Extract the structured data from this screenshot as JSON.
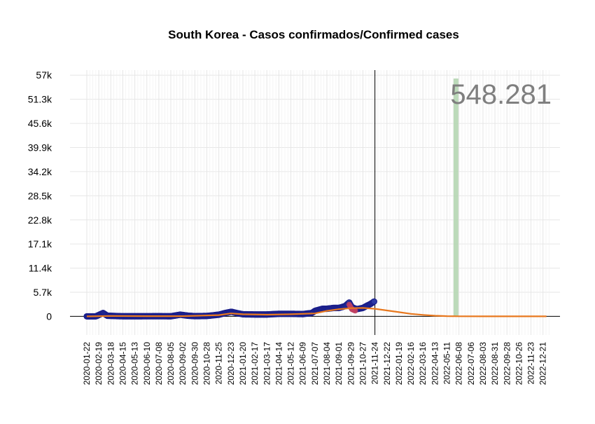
{
  "chart_data": {
    "type": "scatter",
    "title": "South Korea - Casos confirmados/Confirmed cases",
    "xlabel": "",
    "ylabel": "",
    "ylim": [
      -4400,
      58200
    ],
    "y_ticks": [
      0,
      5700,
      11400,
      17100,
      22800,
      28500,
      34200,
      39900,
      45600,
      51300,
      57000
    ],
    "y_tick_labels": [
      "0",
      "5.7k",
      "11.4k",
      "17.1k",
      "22.8k",
      "28.5k",
      "34.2k",
      "39.9k",
      "45.6k",
      "51.3k",
      "57k"
    ],
    "x_tick_labels": [
      "2020-01-22",
      "2020-02-19",
      "2020-03-18",
      "2020-04-15",
      "2020-05-13",
      "2020-06-10",
      "2020-07-08",
      "2020-08-05",
      "2020-09-02",
      "2020-09-30",
      "2020-10-28",
      "2020-11-25",
      "2020-12-23",
      "2021-01-20",
      "2021-02-17",
      "2021-03-17",
      "2021-04-14",
      "2021-05-12",
      "2021-06-09",
      "2021-07-07",
      "2021-08-04",
      "2021-09-01",
      "2021-09-29",
      "2021-10-27",
      "2021-11-24",
      "2021-12-22",
      "2022-01-19",
      "2022-02-16",
      "2022-03-16",
      "2022-04-13",
      "2022-05-11",
      "2022-06-08",
      "2022-07-06",
      "2022-08-03",
      "2022-08-31",
      "2022-09-28",
      "2022-10-26",
      "2022-11-23",
      "2022-12-21"
    ],
    "grid": true,
    "observed_cases": {
      "x": [
        "2020-01-22",
        "2020-02-12",
        "2020-02-29",
        "2020-03-10",
        "2020-03-25",
        "2020-04-15",
        "2020-05-13",
        "2020-06-10",
        "2020-07-08",
        "2020-08-05",
        "2020-08-27",
        "2020-09-15",
        "2020-09-30",
        "2020-10-28",
        "2020-11-25",
        "2020-12-10",
        "2020-12-24",
        "2021-01-05",
        "2021-01-20",
        "2021-02-17",
        "2021-03-17",
        "2021-04-14",
        "2021-05-12",
        "2021-06-09",
        "2021-06-30",
        "2021-07-07",
        "2021-07-25",
        "2021-08-04",
        "2021-08-20",
        "2021-09-01",
        "2021-09-15",
        "2021-09-25",
        "2021-10-01",
        "2021-10-12",
        "2021-10-27",
        "2021-11-05",
        "2021-11-15",
        "2021-11-22"
      ],
      "y": [
        0,
        0,
        800,
        150,
        100,
        30,
        30,
        40,
        50,
        30,
        400,
        150,
        60,
        100,
        400,
        800,
        1100,
        800,
        500,
        450,
        450,
        600,
        600,
        550,
        800,
        1300,
        1800,
        1800,
        2000,
        2000,
        2400,
        3270,
        2200,
        1700,
        2000,
        2500,
        3000,
        3500
      ]
    },
    "recent_highlight": {
      "from": "2021-09-25",
      "to": "2021-10-10"
    },
    "fitted_curve": {
      "x": [
        "2020-01-22",
        "2020-03-18",
        "2020-06-10",
        "2020-09-02",
        "2020-11-25",
        "2020-12-23",
        "2021-01-20",
        "2021-03-17",
        "2021-05-12",
        "2021-07-07",
        "2021-08-04",
        "2021-09-01",
        "2021-09-29",
        "2021-10-27",
        "2021-11-24",
        "2021-12-22",
        "2022-01-19",
        "2022-02-16",
        "2022-03-16",
        "2022-04-13",
        "2022-05-11",
        "2022-06-08",
        "2022-08-03",
        "2022-09-28",
        "2022-11-23",
        "2022-12-29"
      ],
      "y": [
        0,
        100,
        60,
        50,
        300,
        700,
        500,
        400,
        500,
        700,
        1300,
        1700,
        1950,
        2000,
        1800,
        1400,
        1000,
        600,
        350,
        150,
        60,
        20,
        5,
        0,
        0,
        0
      ]
    },
    "vertical_line_date": "2021-11-24",
    "peak_band_date": "2022-06-01",
    "peak_label": "548.281",
    "colors": {
      "observed": "#1b1f8a",
      "observed_fill": "#2e3ca8",
      "fitted": "#e8781e",
      "peak_band": "#b5d6b2",
      "highlight": "#c04060",
      "vline": "#000000",
      "grid": "#e6e6e6"
    }
  }
}
